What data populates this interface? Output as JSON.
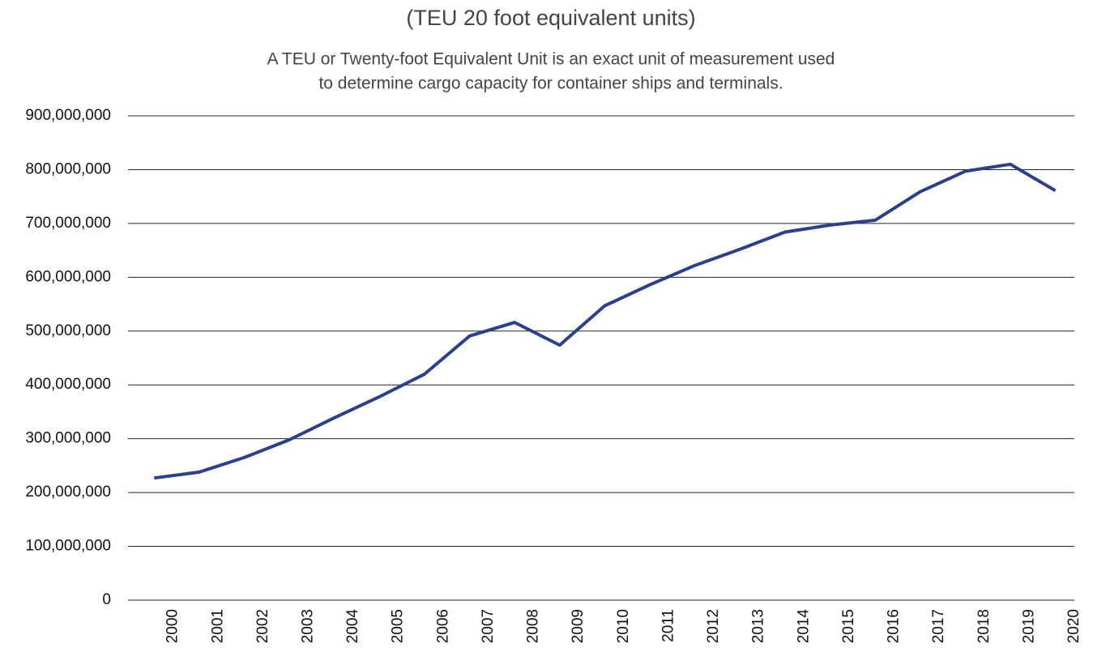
{
  "chart_data": {
    "type": "line",
    "title": "(TEU 20 foot equivalent units)",
    "subtitle": [
      "A TEU or Twenty-foot Equivalent Unit is an exact unit of measurement used",
      "to determine cargo capacity for container ships and terminals."
    ],
    "categories": [
      "2000",
      "2001",
      "2002",
      "2003",
      "2004",
      "2005",
      "2006",
      "2007",
      "2008",
      "2009",
      "2010",
      "2011",
      "2012",
      "2013",
      "2014",
      "2015",
      "2016",
      "2017",
      "2018",
      "2019",
      "2020"
    ],
    "series": [
      {
        "color": "#2c3f8e",
        "values": [
          227000000,
          238000000,
          265000000,
          298000000,
          339000000,
          378000000,
          420000000,
          491000000,
          516000000,
          474000000,
          547000000,
          586000000,
          622000000,
          652000000,
          684000000,
          697000000,
          706000000,
          759000000,
          797000000,
          810000000,
          761000000
        ]
      }
    ],
    "ylim": [
      0,
      900000000
    ],
    "yticks": [
      0,
      {
        "value": 100000000,
        "label": "100,000,000"
      },
      {
        "value": 200000000,
        "label": "200,000,000"
      },
      {
        "value": 300000000,
        "label": "300,000,000"
      },
      {
        "value": 400000000,
        "label": "400,000,000"
      },
      {
        "value": 500000000,
        "label": "500,000,000"
      },
      {
        "value": 600000000,
        "label": "600,000,000"
      },
      {
        "value": 700000000,
        "label": "700,000,000"
      },
      {
        "value": 800000000,
        "label": "800,000,000"
      },
      {
        "value": 900000000,
        "label": "900,000,000"
      }
    ],
    "grid": true
  }
}
